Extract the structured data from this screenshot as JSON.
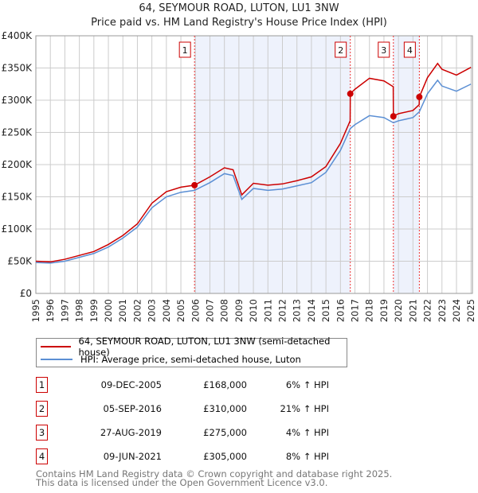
{
  "chart_data": {
    "type": "line",
    "title": "64, SEYMOUR ROAD, LUTON, LU1 3NW",
    "subtitle": "Price paid vs. HM Land Registry's House Price Index (HPI)",
    "xlim": [
      1995,
      2025.1
    ],
    "ylim": [
      0,
      400000
    ],
    "y_ticks": [
      {
        "v": 0,
        "label": "£0"
      },
      {
        "v": 50000,
        "label": "£50K"
      },
      {
        "v": 100000,
        "label": "£100K"
      },
      {
        "v": 150000,
        "label": "£150K"
      },
      {
        "v": 200000,
        "label": "£200K"
      },
      {
        "v": 250000,
        "label": "£250K"
      },
      {
        "v": 300000,
        "label": "£300K"
      },
      {
        "v": 350000,
        "label": "£350K"
      },
      {
        "v": 400000,
        "label": "£400K"
      }
    ],
    "x_ticks": [
      "1995",
      "1996",
      "1997",
      "1998",
      "1999",
      "2000",
      "2001",
      "2002",
      "2003",
      "2004",
      "2005",
      "2006",
      "2007",
      "2008",
      "2009",
      "2010",
      "2011",
      "2012",
      "2013",
      "2014",
      "2015",
      "2016",
      "2017",
      "2018",
      "2019",
      "2020",
      "2021",
      "2022",
      "2023",
      "2024",
      "2025"
    ],
    "grid": true,
    "series": [
      {
        "name": "64, SEYMOUR ROAD, LUTON, LU1 3NW (semi-detached house)",
        "color": "#cc0000",
        "x": [
          1995,
          1996,
          1997,
          1998,
          1999,
          2000,
          2001,
          2002,
          2003,
          2004,
          2005,
          2005.94,
          2007,
          2008,
          2008.6,
          2009.2,
          2010,
          2011,
          2012,
          2013,
          2014,
          2015,
          2016,
          2016.67,
          2016.68,
          2017,
          2018,
          2019,
          2019.64,
          2019.65,
          2020,
          2021,
          2021.43,
          2021.44,
          2022,
          2022.7,
          2023,
          2024,
          2025
        ],
        "y": [
          50000,
          49000,
          53000,
          59000,
          65000,
          76000,
          90000,
          108000,
          140000,
          158000,
          165000,
          168000,
          181000,
          195000,
          192000,
          153000,
          171000,
          168000,
          170000,
          175000,
          181000,
          197000,
          233000,
          268000,
          310000,
          317000,
          334000,
          330000,
          321000,
          275000,
          279000,
          284000,
          293000,
          305000,
          335000,
          357000,
          348000,
          339000,
          351000
        ]
      },
      {
        "name": "HPI: Average price, semi-detached house, Luton",
        "color": "#5b8fd4",
        "x": [
          1995,
          1996,
          1997,
          1998,
          1999,
          2000,
          2001,
          2002,
          2003,
          2004,
          2005,
          2005.94,
          2007,
          2008,
          2008.6,
          2009.2,
          2010,
          2011,
          2012,
          2013,
          2014,
          2015,
          2016,
          2016.68,
          2017,
          2018,
          2019,
          2019.65,
          2020,
          2021,
          2021.44,
          2022,
          2022.7,
          2023,
          2024,
          2025
        ],
        "y": [
          48000,
          47000,
          50000,
          56000,
          62000,
          72000,
          86000,
          103000,
          133000,
          150000,
          157000,
          160000,
          172000,
          186000,
          183000,
          146000,
          163000,
          160000,
          162000,
          167000,
          172000,
          188000,
          222000,
          256000,
          262000,
          276000,
          273000,
          265000,
          268000,
          273000,
          282000,
          310000,
          331000,
          322000,
          314000,
          325000
        ]
      }
    ],
    "sales": [
      {
        "n": "1",
        "x": 2005.94,
        "date": "09-DEC-2005",
        "price": 168000,
        "price_label": "£168,000",
        "hpi": "6% ↑ HPI"
      },
      {
        "n": "2",
        "x": 2016.68,
        "date": "05-SEP-2016",
        "price": 310000,
        "price_label": "£310,000",
        "hpi": "21% ↑ HPI"
      },
      {
        "n": "3",
        "x": 2019.65,
        "date": "27-AUG-2019",
        "price": 275000,
        "price_label": "£275,000",
        "hpi": "4% ↑ HPI"
      },
      {
        "n": "4",
        "x": 2021.44,
        "date": "09-JUN-2021",
        "price": 305000,
        "price_label": "£305,000",
        "hpi": "8% ↑ HPI"
      }
    ],
    "shaded_ranges": [
      [
        2005.94,
        2016.68
      ],
      [
        2019.65,
        2021.44
      ]
    ],
    "legend_position": "bottom"
  },
  "footer": {
    "line1": "Contains HM Land Registry data © Crown copyright and database right 2025.",
    "line2": "This data is licensed under the Open Government Licence v3.0."
  }
}
